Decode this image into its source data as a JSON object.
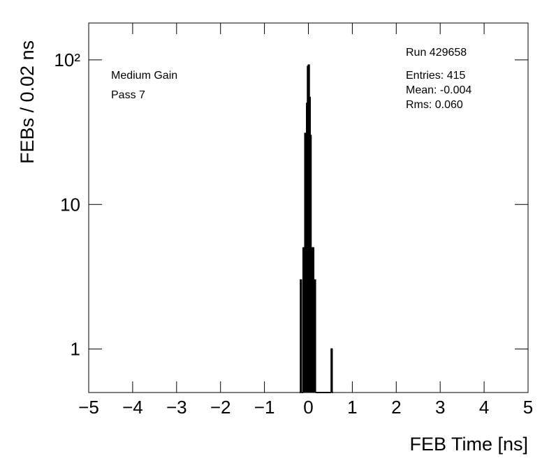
{
  "chart_data": {
    "type": "histogram",
    "x_label": "FEB Time [ns]",
    "y_label": "FEBs / 0.02 ns",
    "annotations": [
      "Medium Gain",
      "Pass 7",
      "Run 429658",
      "Entries: 415",
      "Mean: -0.004",
      "Rms: 0.060"
    ],
    "bins": [
      -0.2,
      -0.18,
      -0.16,
      -0.14,
      -0.12,
      -0.1,
      -0.08,
      -0.06,
      -0.04,
      -0.02,
      0,
      0.02,
      0.04,
      0.06,
      0.08,
      0.1,
      0.12,
      0.14,
      0.16,
      0.18,
      0.2,
      0.22,
      0.24,
      0.26,
      0.28,
      0.3,
      0.32,
      0.34,
      0.36,
      0.38,
      0.4,
      0.42,
      0.44,
      0.46,
      0.48,
      0.5,
      0.52,
      0.54,
      0.56
    ],
    "values": [
      0,
      3,
      0,
      0,
      5,
      5,
      31,
      28,
      50,
      90,
      92,
      55,
      30,
      5,
      5,
      5,
      2,
      3,
      0,
      0,
      0,
      0,
      0,
      0,
      0,
      0,
      0,
      0,
      0,
      0,
      0,
      0,
      0,
      0,
      0,
      0,
      1,
      0
    ],
    "color": "#000000",
    "xlim": [
      -5,
      5
    ],
    "xticks": [
      {
        "value": -5,
        "label": "−5"
      },
      {
        "value": -4,
        "label": "−4"
      },
      {
        "value": -3,
        "label": "−3"
      },
      {
        "value": -2,
        "label": "−2"
      },
      {
        "value": -1,
        "label": "−1"
      },
      0,
      1,
      2,
      3,
      4,
      5
    ],
    "ylim": [
      0.5,
      180
    ],
    "log_y": true,
    "yticks": [
      1,
      10,
      {
        "value": 100,
        "label": "10²"
      }
    ]
  }
}
